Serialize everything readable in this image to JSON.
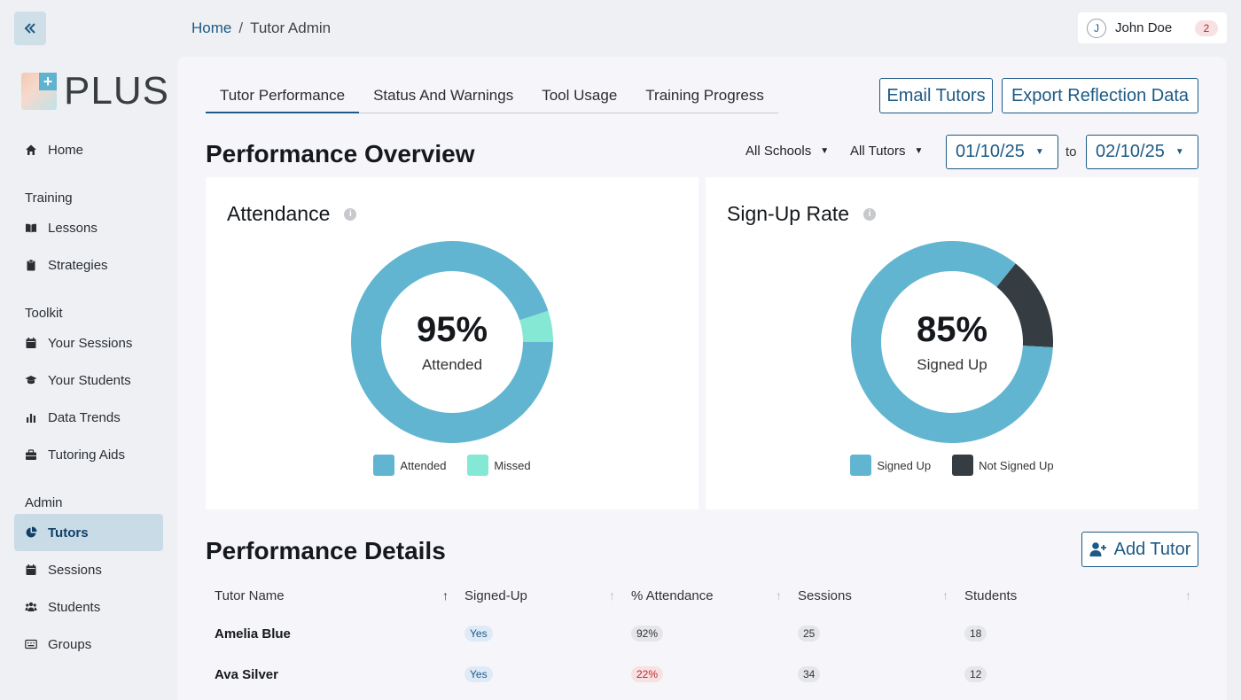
{
  "breadcrumb": {
    "home": "Home",
    "separator": "/",
    "current": "Tutor Admin"
  },
  "user": {
    "initial": "J",
    "name": "John Doe",
    "notifications": "2"
  },
  "logo": {
    "text": "PLUS"
  },
  "sidebar": {
    "home": "Home",
    "training_label": "Training",
    "lessons": "Lessons",
    "strategies": "Strategies",
    "toolkit_label": "Toolkit",
    "your_sessions": "Your Sessions",
    "your_students": "Your Students",
    "data_trends": "Data Trends",
    "tutoring_aids": "Tutoring Aids",
    "admin_label": "Admin",
    "tutors": "Tutors",
    "sessions": "Sessions",
    "students": "Students",
    "groups": "Groups"
  },
  "tabs": [
    "Tutor Performance",
    "Status And Warnings",
    "Tool Usage",
    "Training Progress"
  ],
  "actions": {
    "email": "Email Tutors",
    "export": "Export Reflection Data",
    "add_tutor": "Add Tutor"
  },
  "overview": {
    "title": "Performance Overview",
    "filter_schools": "All Schools",
    "filter_tutors": "All Tutors",
    "date_from": "01/10/25",
    "to": "to",
    "date_to": "02/10/25"
  },
  "attendance": {
    "title": "Attendance",
    "percent": "95%",
    "label": "Attended",
    "attended_fraction": 0.95,
    "legend_attended": "Attended",
    "legend_missed": "Missed",
    "color_attended": "#62b5d0",
    "color_missed": "#84e8d4"
  },
  "signup": {
    "title": "Sign-Up Rate",
    "percent": "85%",
    "label": "Signed Up",
    "signed_fraction": 0.85,
    "legend_signed": "Signed Up",
    "legend_not": "Not Signed Up",
    "color_signed": "#62b5d0",
    "color_not": "#363d42"
  },
  "details": {
    "title": "Performance Details",
    "columns": [
      "Tutor Name",
      "Signed-Up",
      "% Attendance",
      "Sessions",
      "Students"
    ],
    "rows": [
      {
        "name": "Amelia Blue",
        "signed": "Yes",
        "attendance": "92%",
        "sessions": "25",
        "students": "18"
      },
      {
        "name": "Ava Silver",
        "signed": "Yes",
        "attendance": "22%",
        "sessions": "34",
        "students": "12"
      }
    ]
  }
}
